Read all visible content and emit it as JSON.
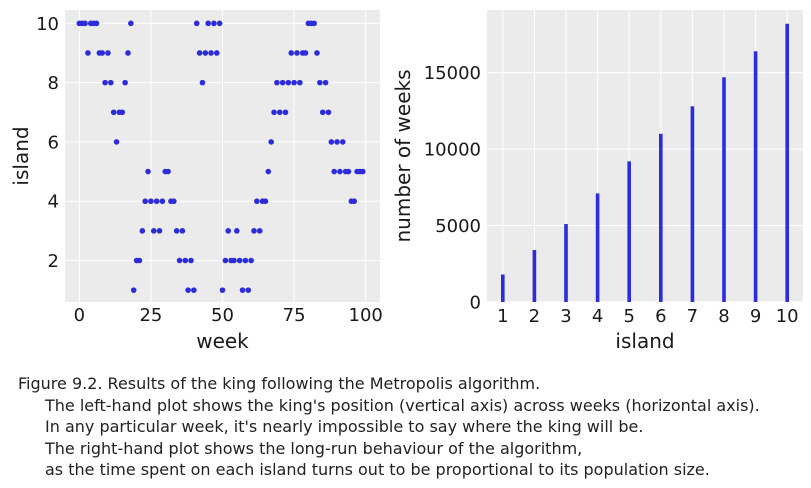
{
  "chart_data": [
    {
      "type": "scatter",
      "xlabel": "week",
      "ylabel": "island",
      "xlim": [
        -5,
        105
      ],
      "ylim": [
        0.6,
        10.45
      ],
      "x_ticks": [
        0,
        25,
        50,
        75,
        100
      ],
      "y_ticks": [
        2,
        4,
        6,
        8,
        10
      ],
      "grid": true,
      "color": "#2c2cdb",
      "points": [
        [
          0,
          10
        ],
        [
          1,
          10
        ],
        [
          2,
          10
        ],
        [
          3,
          9
        ],
        [
          4,
          10
        ],
        [
          5,
          10
        ],
        [
          6,
          10
        ],
        [
          7,
          9
        ],
        [
          8,
          9
        ],
        [
          9,
          8
        ],
        [
          10,
          9
        ],
        [
          11,
          8
        ],
        [
          12,
          7
        ],
        [
          13,
          6
        ],
        [
          14,
          7
        ],
        [
          15,
          7
        ],
        [
          16,
          8
        ],
        [
          17,
          9
        ],
        [
          18,
          10
        ],
        [
          19,
          1
        ],
        [
          20,
          2
        ],
        [
          21,
          2
        ],
        [
          22,
          3
        ],
        [
          23,
          4
        ],
        [
          24,
          5
        ],
        [
          25,
          4
        ],
        [
          26,
          3
        ],
        [
          27,
          4
        ],
        [
          28,
          3
        ],
        [
          29,
          4
        ],
        [
          30,
          5
        ],
        [
          31,
          5
        ],
        [
          32,
          4
        ],
        [
          33,
          4
        ],
        [
          34,
          3
        ],
        [
          35,
          2
        ],
        [
          36,
          3
        ],
        [
          37,
          2
        ],
        [
          38,
          1
        ],
        [
          39,
          2
        ],
        [
          40,
          1
        ],
        [
          41,
          10
        ],
        [
          42,
          9
        ],
        [
          43,
          8
        ],
        [
          44,
          9
        ],
        [
          45,
          10
        ],
        [
          46,
          9
        ],
        [
          47,
          10
        ],
        [
          48,
          9
        ],
        [
          49,
          10
        ],
        [
          50,
          1
        ],
        [
          51,
          2
        ],
        [
          52,
          3
        ],
        [
          53,
          2
        ],
        [
          54,
          2
        ],
        [
          55,
          3
        ],
        [
          56,
          2
        ],
        [
          57,
          1
        ],
        [
          58,
          2
        ],
        [
          59,
          1
        ],
        [
          60,
          2
        ],
        [
          61,
          3
        ],
        [
          62,
          4
        ],
        [
          63,
          3
        ],
        [
          64,
          4
        ],
        [
          65,
          4
        ],
        [
          66,
          5
        ],
        [
          67,
          6
        ],
        [
          68,
          7
        ],
        [
          69,
          8
        ],
        [
          70,
          7
        ],
        [
          71,
          8
        ],
        [
          72,
          7
        ],
        [
          73,
          8
        ],
        [
          74,
          9
        ],
        [
          75,
          8
        ],
        [
          76,
          9
        ],
        [
          77,
          8
        ],
        [
          78,
          9
        ],
        [
          79,
          9
        ],
        [
          80,
          10
        ],
        [
          81,
          10
        ],
        [
          82,
          10
        ],
        [
          83,
          9
        ],
        [
          84,
          8
        ],
        [
          85,
          7
        ],
        [
          86,
          8
        ],
        [
          87,
          7
        ],
        [
          88,
          6
        ],
        [
          89,
          5
        ],
        [
          90,
          6
        ],
        [
          91,
          5
        ],
        [
          92,
          6
        ],
        [
          93,
          5
        ],
        [
          94,
          5
        ],
        [
          95,
          4
        ],
        [
          96,
          4
        ],
        [
          97,
          5
        ],
        [
          98,
          5
        ],
        [
          99,
          5
        ]
      ]
    },
    {
      "type": "bar",
      "xlabel": "island",
      "ylabel": "number of weeks",
      "categories": [
        "1",
        "2",
        "3",
        "4",
        "5",
        "6",
        "7",
        "8",
        "9",
        "10"
      ],
      "values": [
        1800,
        3400,
        5100,
        7100,
        9200,
        11000,
        12800,
        14700,
        16400,
        18200
      ],
      "ylim": [
        0,
        19100
      ],
      "y_ticks": [
        0,
        5000,
        10000,
        15000
      ],
      "grid": true,
      "color": "#2c2cdb"
    }
  ],
  "caption": {
    "lines": [
      "Figure 9.2. Results of the king following the Metropolis algorithm.",
      "The left-hand plot shows the king's position (vertical axis) across weeks (horizontal axis).",
      "In any particular week, it's nearly impossible to say where the king will be.",
      "The right-hand plot shows the long-run behaviour of the algorithm,",
      "as the time spent on each island turns out to be proportional to its population size."
    ]
  }
}
